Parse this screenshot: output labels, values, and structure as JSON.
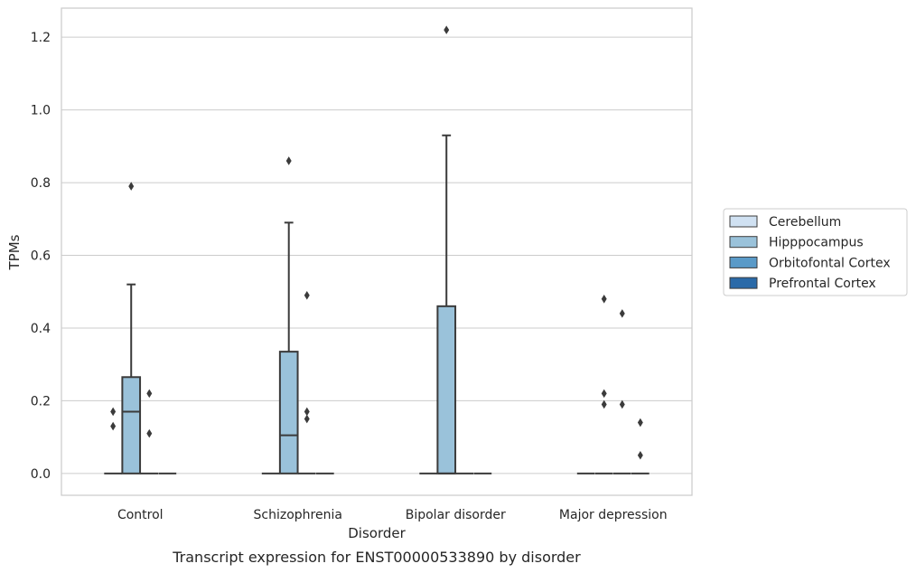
{
  "chart_data": {
    "type": "box",
    "title": "",
    "caption": "Transcript expression for ENST00000533890 by disorder",
    "xlabel": "Disorder",
    "ylabel": "TPMs",
    "ylim": [
      -0.06,
      1.28
    ],
    "yticks": [
      0.0,
      0.2,
      0.4,
      0.6,
      0.8,
      1.0,
      1.2
    ],
    "ytick_labels": [
      "0.0",
      "0.2",
      "0.4",
      "0.6",
      "0.8",
      "1.0",
      "1.2"
    ],
    "grid": "horizontal",
    "legend_position": "right",
    "categories": [
      "Control",
      "Schizophrenia",
      "Bipolar disorder",
      "Major depression"
    ],
    "series": [
      {
        "name": "Cerebellum",
        "color": "#d0e1f2",
        "boxes": [
          {
            "category": "Control",
            "q1": 0,
            "median": 0,
            "q3": 0,
            "whisker_low": 0,
            "whisker_high": 0,
            "outliers": [
              0.13,
              0.17
            ]
          },
          {
            "category": "Schizophrenia",
            "q1": 0,
            "median": 0,
            "q3": 0,
            "whisker_low": 0,
            "whisker_high": 0,
            "outliers": []
          },
          {
            "category": "Bipolar disorder",
            "q1": 0,
            "median": 0,
            "q3": 0,
            "whisker_low": 0,
            "whisker_high": 0,
            "outliers": []
          },
          {
            "category": "Major depression",
            "q1": 0,
            "median": 0,
            "q3": 0,
            "whisker_low": 0,
            "whisker_high": 0,
            "outliers": []
          }
        ]
      },
      {
        "name": "Hipppocampus",
        "color": "#9ac2da",
        "boxes": [
          {
            "category": "Control",
            "q1": 0,
            "median": 0.17,
            "q3": 0.265,
            "whisker_low": 0,
            "whisker_high": 0.52,
            "outliers": [
              0.79
            ]
          },
          {
            "category": "Schizophrenia",
            "q1": 0,
            "median": 0.105,
            "q3": 0.335,
            "whisker_low": 0,
            "whisker_high": 0.69,
            "outliers": [
              0.86
            ]
          },
          {
            "category": "Bipolar disorder",
            "q1": 0,
            "median": 0,
            "q3": 0.46,
            "whisker_low": 0,
            "whisker_high": 0.93,
            "outliers": [
              1.22
            ]
          },
          {
            "category": "Major depression",
            "q1": 0,
            "median": 0,
            "q3": 0,
            "whisker_low": 0,
            "whisker_high": 0,
            "outliers": [
              0.22,
              0.19,
              0.48
            ]
          }
        ]
      },
      {
        "name": "Orbitofontal Cortex",
        "color": "#5a9ac8",
        "boxes": [
          {
            "category": "Control",
            "q1": 0,
            "median": 0,
            "q3": 0,
            "whisker_low": 0,
            "whisker_high": 0,
            "outliers": [
              0.11,
              0.22
            ]
          },
          {
            "category": "Schizophrenia",
            "q1": 0,
            "median": 0,
            "q3": 0,
            "whisker_low": 0,
            "whisker_high": 0,
            "outliers": [
              0.15,
              0.17,
              0.49
            ]
          },
          {
            "category": "Bipolar disorder",
            "q1": 0,
            "median": 0,
            "q3": 0,
            "whisker_low": 0,
            "whisker_high": 0,
            "outliers": []
          },
          {
            "category": "Major depression",
            "q1": 0,
            "median": 0,
            "q3": 0,
            "whisker_low": 0,
            "whisker_high": 0,
            "outliers": [
              0.19,
              0.44
            ]
          }
        ]
      },
      {
        "name": "Prefrontal Cortex",
        "color": "#2a6aa8",
        "boxes": [
          {
            "category": "Control",
            "q1": 0,
            "median": 0,
            "q3": 0,
            "whisker_low": 0,
            "whisker_high": 0,
            "outliers": []
          },
          {
            "category": "Schizophrenia",
            "q1": 0,
            "median": 0,
            "q3": 0,
            "whisker_low": 0,
            "whisker_high": 0,
            "outliers": []
          },
          {
            "category": "Bipolar disorder",
            "q1": 0,
            "median": 0,
            "q3": 0,
            "whisker_low": 0,
            "whisker_high": 0,
            "outliers": []
          },
          {
            "category": "Major depression",
            "q1": 0,
            "median": 0,
            "q3": 0,
            "whisker_low": 0,
            "whisker_high": 0,
            "outliers": [
              0.05,
              0.14
            ]
          }
        ]
      }
    ]
  }
}
